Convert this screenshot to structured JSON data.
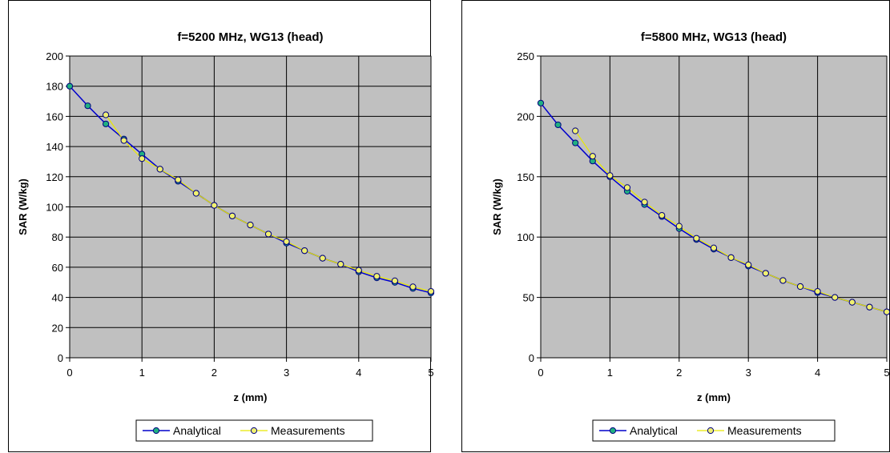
{
  "chart_data": [
    {
      "type": "line",
      "title": "f=5200 MHz, WG13  (head)",
      "xlabel": "z (mm)",
      "ylabel": "SAR (W/kg)",
      "xlim": [
        0,
        5
      ],
      "ylim": [
        0,
        200
      ],
      "xticks": [
        0,
        1,
        2,
        3,
        4,
        5
      ],
      "yticks": [
        0,
        20,
        40,
        60,
        80,
        100,
        120,
        140,
        160,
        180,
        200
      ],
      "grid": true,
      "legend": "bottom",
      "series": [
        {
          "name": "Analytical",
          "color": "#0000cc",
          "marker_color": "#20b080",
          "x": [
            0,
            0.25,
            0.5,
            0.75,
            1,
            1.25,
            1.5,
            1.75,
            2,
            2.25,
            2.5,
            2.75,
            3,
            3.25,
            3.5,
            3.75,
            4,
            4.25,
            4.5,
            4.75,
            5
          ],
          "y": [
            180,
            167,
            155,
            145,
            135,
            125,
            117,
            109,
            101,
            94,
            88,
            82,
            76,
            71,
            66,
            62,
            57,
            53,
            50,
            46,
            43
          ]
        },
        {
          "name": "Measurements",
          "color": "#e8e800",
          "marker_color": "#f0f070",
          "x": [
            0.5,
            0.75,
            1,
            1.25,
            1.5,
            1.75,
            2,
            2.25,
            2.5,
            2.75,
            3,
            3.25,
            3.5,
            3.75,
            4,
            4.25,
            4.5,
            4.75,
            5
          ],
          "y": [
            161,
            144,
            132,
            125,
            118,
            109,
            101,
            94,
            88,
            82,
            77,
            71,
            66,
            62,
            58,
            54,
            51,
            47,
            44
          ]
        }
      ]
    },
    {
      "type": "line",
      "title": "f=5800 MHz, WG13  (head)",
      "xlabel": "z (mm)",
      "ylabel": "SAR (W/kg)",
      "xlim": [
        0,
        5
      ],
      "ylim": [
        0,
        250
      ],
      "xticks": [
        0,
        1,
        2,
        3,
        4,
        5
      ],
      "yticks": [
        0,
        50,
        100,
        150,
        200,
        250
      ],
      "grid": true,
      "legend": "bottom",
      "series": [
        {
          "name": "Analytical",
          "color": "#0000cc",
          "marker_color": "#20b080",
          "x": [
            0,
            0.25,
            0.5,
            0.75,
            1,
            1.25,
            1.5,
            1.75,
            2,
            2.25,
            2.5,
            2.75,
            3,
            3.25,
            3.5,
            3.75,
            4,
            4.25,
            4.5,
            4.75,
            5
          ],
          "y": [
            211,
            193,
            178,
            163,
            150,
            138,
            127,
            117,
            107,
            98,
            90,
            83,
            76,
            70,
            64,
            59,
            54,
            50,
            46,
            42,
            38
          ]
        },
        {
          "name": "Measurements",
          "color": "#e8e800",
          "marker_color": "#f0f070",
          "x": [
            0.5,
            0.75,
            1,
            1.25,
            1.5,
            1.75,
            2,
            2.25,
            2.5,
            2.75,
            3,
            3.25,
            3.5,
            3.75,
            4,
            4.25,
            4.5,
            4.75,
            5
          ],
          "y": [
            188,
            167,
            151,
            141,
            129,
            118,
            109,
            99,
            91,
            83,
            77,
            70,
            64,
            59,
            55,
            50,
            46,
            42,
            38
          ]
        }
      ]
    }
  ]
}
